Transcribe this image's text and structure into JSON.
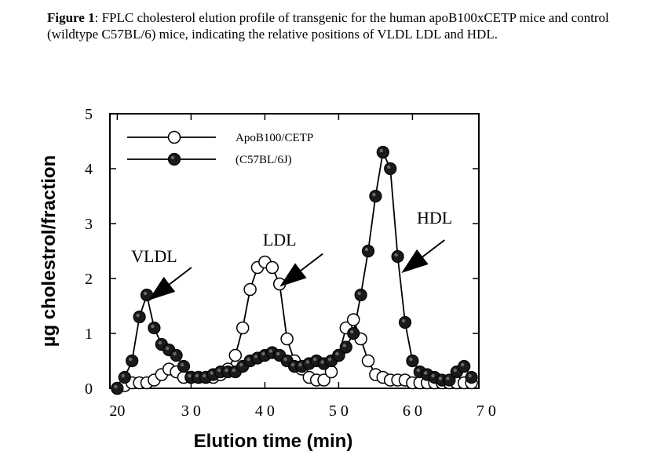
{
  "caption": {
    "label": "Figure 1",
    "text": ": FPLC cholesterol elution profile of transgenic for the human apoB100xCETP mice and control (wildtype C57BL/6) mice, indicating the relative positions of VLDL LDL and HDL."
  },
  "chart_data": {
    "type": "line",
    "title": "",
    "xlabel": "Elution time (min)",
    "ylabel": "µg cholestrol/fraction",
    "xlim": [
      19,
      69
    ],
    "ylim": [
      0,
      5
    ],
    "xticks": [
      20,
      30,
      40,
      50,
      60,
      70
    ],
    "xtick_labels": [
      "20",
      "3 0",
      "4 0",
      "5 0",
      "6 0",
      "7 0"
    ],
    "yticks": [
      0,
      1,
      2,
      3,
      4,
      5
    ],
    "ytick_labels": [
      "0",
      "1",
      "2",
      "3",
      "4",
      "5"
    ],
    "grid": false,
    "legend_position": "top-left",
    "series": [
      {
        "name": "ApoB100/CETP",
        "marker": "open-circle",
        "x": [
          20,
          21,
          22,
          23,
          24,
          25,
          26,
          27,
          28,
          29,
          30,
          31,
          32,
          33,
          34,
          35,
          36,
          37,
          38,
          39,
          40,
          41,
          42,
          43,
          44,
          45,
          46,
          47,
          48,
          49,
          50,
          51,
          52,
          53,
          54,
          55,
          56,
          57,
          58,
          59,
          60,
          61,
          62,
          63,
          64,
          65,
          66,
          67,
          68
        ],
        "y": [
          0.0,
          0.05,
          0.1,
          0.1,
          0.1,
          0.15,
          0.25,
          0.35,
          0.3,
          0.2,
          0.2,
          0.2,
          0.2,
          0.2,
          0.25,
          0.35,
          0.6,
          1.1,
          1.8,
          2.2,
          2.3,
          2.2,
          1.9,
          0.9,
          0.5,
          0.35,
          0.2,
          0.15,
          0.15,
          0.3,
          0.6,
          1.1,
          1.25,
          0.9,
          0.5,
          0.25,
          0.2,
          0.15,
          0.15,
          0.15,
          0.1,
          0.1,
          0.1,
          0.1,
          0.1,
          0.1,
          0.1,
          0.1,
          0.1
        ]
      },
      {
        "name": "(C57BL/6J)",
        "marker": "filled-circle",
        "x": [
          20,
          21,
          22,
          23,
          24,
          25,
          26,
          27,
          28,
          29,
          30,
          31,
          32,
          33,
          34,
          35,
          36,
          37,
          38,
          39,
          40,
          41,
          42,
          43,
          44,
          45,
          46,
          47,
          48,
          49,
          50,
          51,
          52,
          53,
          54,
          55,
          56,
          57,
          58,
          59,
          60,
          61,
          62,
          63,
          64,
          65,
          66,
          67,
          68
        ],
        "y": [
          0.0,
          0.2,
          0.5,
          1.3,
          1.7,
          1.1,
          0.8,
          0.7,
          0.6,
          0.4,
          0.2,
          0.2,
          0.2,
          0.25,
          0.3,
          0.3,
          0.3,
          0.4,
          0.5,
          0.55,
          0.6,
          0.65,
          0.6,
          0.5,
          0.4,
          0.4,
          0.45,
          0.5,
          0.45,
          0.5,
          0.6,
          0.75,
          1.0,
          1.7,
          2.5,
          3.5,
          4.3,
          4.0,
          2.4,
          1.2,
          0.5,
          0.3,
          0.25,
          0.2,
          0.15,
          0.15,
          0.3,
          0.4,
          0.2
        ]
      }
    ],
    "annotations": [
      {
        "text": "VLDL",
        "x": 25,
        "y": 2.3,
        "arrow_to": [
          24.2,
          1.6
        ]
      },
      {
        "text": "LDL",
        "x": 42,
        "y": 2.6,
        "arrow_to": [
          42,
          1.85
        ]
      },
      {
        "text": "HDL",
        "x": 63,
        "y": 3.0,
        "arrow_to": [
          58.5,
          2.1
        ]
      }
    ]
  }
}
